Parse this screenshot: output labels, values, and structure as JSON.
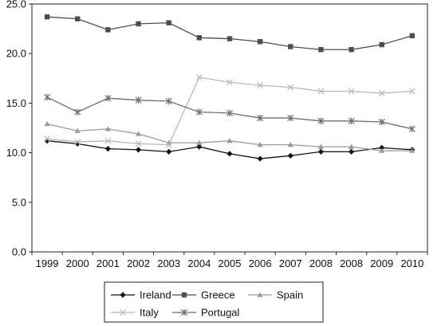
{
  "chart_data": {
    "type": "line",
    "categories": [
      "1999",
      "2000",
      "2001",
      "2002",
      "2003",
      "2004",
      "2005",
      "2006",
      "2007",
      "2008",
      "2008",
      "2009",
      "2010"
    ],
    "ylim": [
      0,
      25
    ],
    "yticks": [
      "0.0",
      "5.0",
      "10.0",
      "15.0",
      "20.0",
      "25.0"
    ],
    "grid": false,
    "legend_position": "bottom",
    "series": [
      {
        "name": "Ireland",
        "color": "#111111",
        "marker": "diamond",
        "values": [
          11.2,
          10.9,
          10.4,
          10.3,
          10.1,
          10.6,
          9.9,
          9.4,
          9.7,
          10.1,
          10.1,
          10.5,
          10.3
        ]
      },
      {
        "name": "Greece",
        "color": "#4d4d4d",
        "marker": "square",
        "values": [
          23.7,
          23.5,
          22.4,
          23.0,
          23.1,
          21.6,
          21.5,
          21.2,
          20.7,
          20.4,
          20.4,
          20.9,
          21.8
        ]
      },
      {
        "name": "Spain",
        "color": "#9a9a9a",
        "marker": "triangle",
        "values": [
          12.9,
          12.2,
          12.4,
          11.9,
          11.0,
          11.0,
          11.2,
          10.8,
          10.8,
          10.6,
          10.6,
          10.2,
          10.2
        ]
      },
      {
        "name": "Italy",
        "color": "#b8b8b8",
        "marker": "x",
        "values": [
          11.4,
          11.1,
          11.2,
          10.9,
          10.8,
          17.6,
          17.1,
          16.8,
          16.6,
          16.2,
          16.2,
          16.0,
          16.2
        ]
      },
      {
        "name": "Portugal",
        "color": "#6e6e6e",
        "marker": "star",
        "values": [
          15.6,
          14.1,
          15.5,
          15.3,
          15.2,
          14.1,
          14.0,
          13.5,
          13.5,
          13.2,
          13.2,
          13.1,
          12.4
        ]
      }
    ]
  }
}
